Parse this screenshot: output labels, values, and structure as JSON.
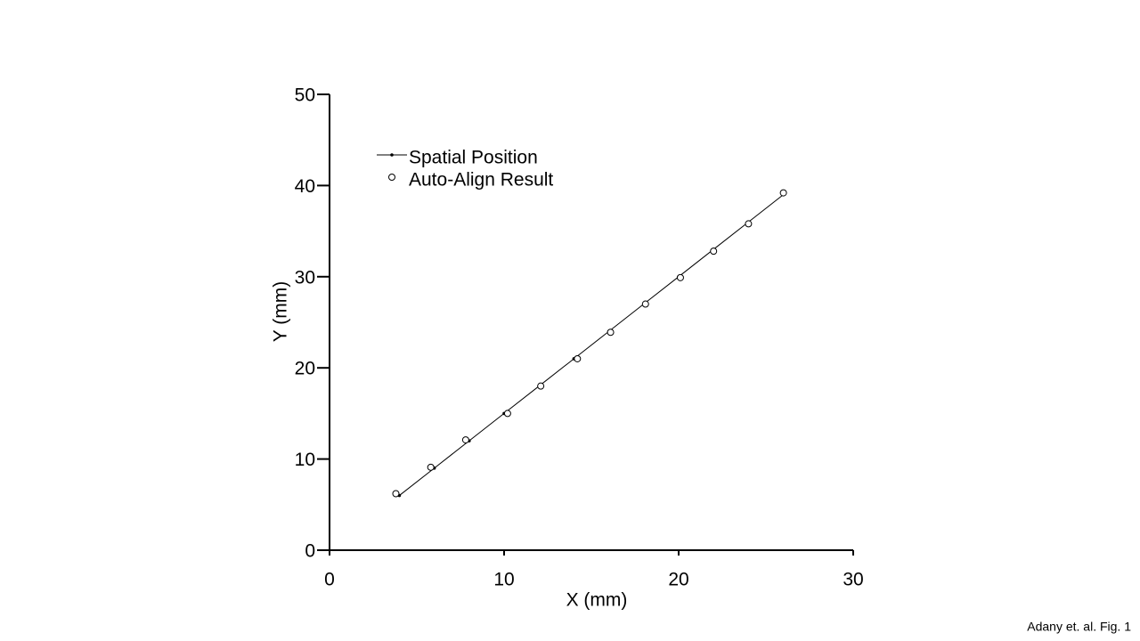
{
  "chart_data": {
    "type": "scatter",
    "xlabel": "X (mm)",
    "ylabel": "Y (mm)",
    "caption": "Adany et. al. Fig. 1",
    "xlim": [
      0,
      30
    ],
    "xticks": [
      0,
      10,
      20,
      30
    ],
    "ylim": [
      0,
      50
    ],
    "yticks": [
      0,
      10,
      20,
      30,
      40,
      50
    ],
    "grid": false,
    "legend": "upper left",
    "series": [
      {
        "name": "Spatial Position",
        "color": "#000000",
        "marker": "dot",
        "line": true,
        "x": [
          4,
          6,
          8,
          10,
          12,
          14,
          16,
          18,
          20,
          22,
          24,
          26
        ],
        "values": [
          6,
          9,
          12,
          15,
          18,
          21,
          24,
          27,
          30,
          33,
          36,
          39
        ]
      },
      {
        "name": "Auto-Align Result",
        "color": "#000000",
        "marker": "circle",
        "line": false,
        "x": [
          3.8,
          5.8,
          7.8,
          10.2,
          12.1,
          14.2,
          16.1,
          18.1,
          20.1,
          22.0,
          24.0,
          26.0
        ],
        "values": [
          6.2,
          9.1,
          12.1,
          15.0,
          18.0,
          21.0,
          23.9,
          27.0,
          29.9,
          32.8,
          35.8,
          39.2
        ]
      }
    ]
  }
}
